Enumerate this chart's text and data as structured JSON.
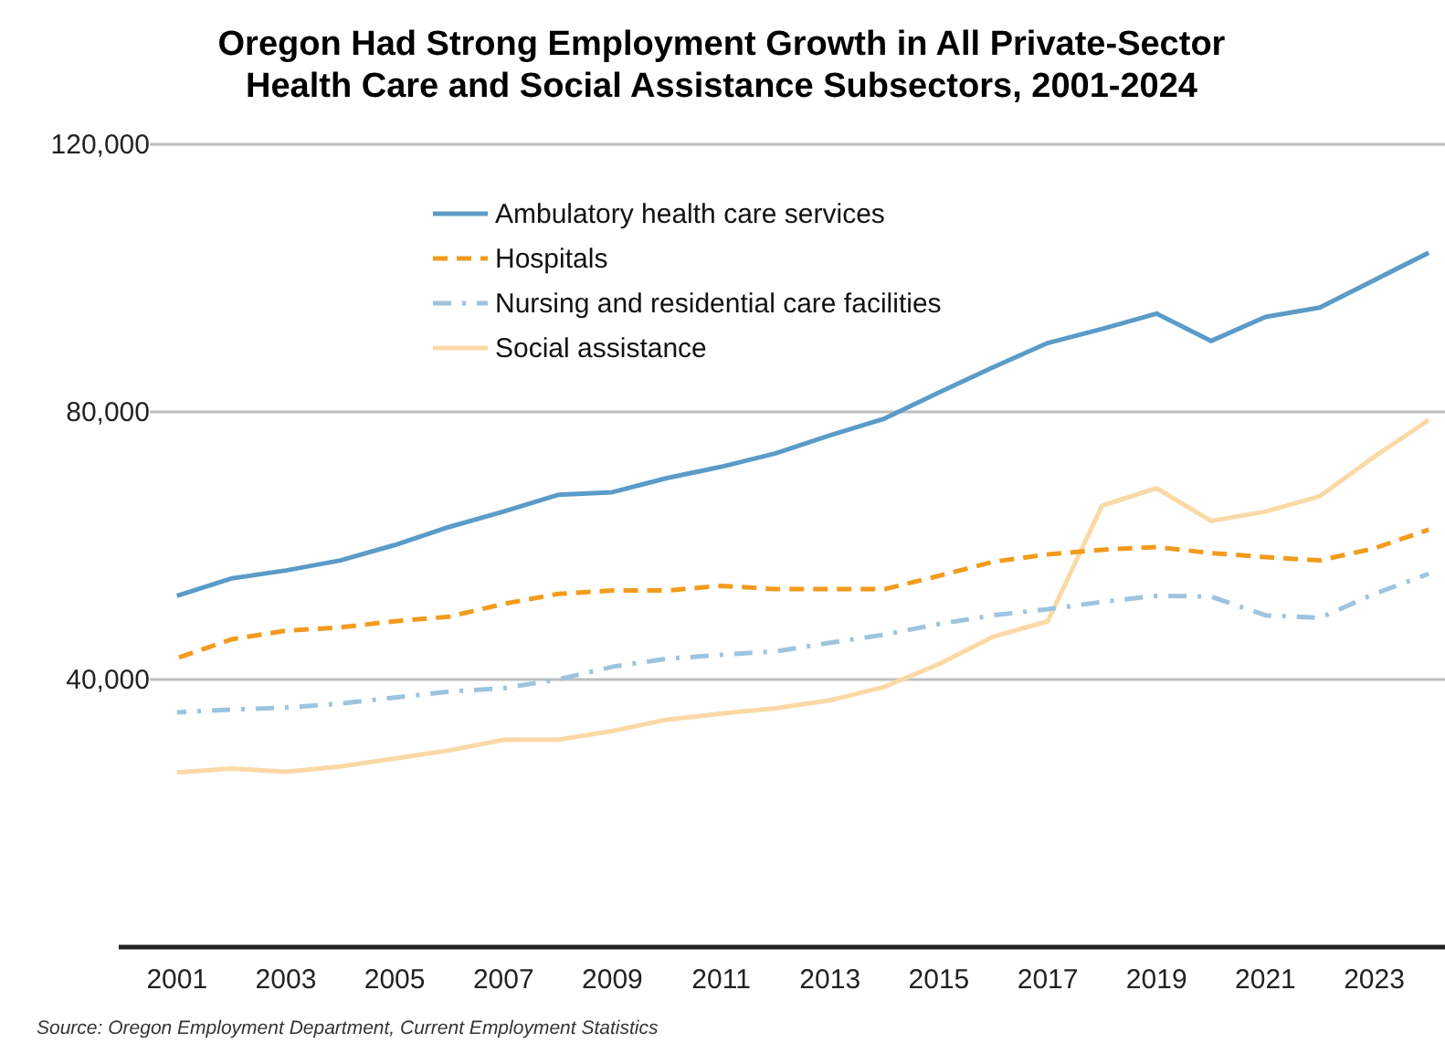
{
  "chart_data": {
    "type": "line",
    "title": "Oregon Had Strong Employment Growth in All Private-Sector Health Care and Social Assistance Subsectors, 2001-2024",
    "x": [
      2001,
      2002,
      2003,
      2004,
      2005,
      2006,
      2007,
      2008,
      2009,
      2010,
      2011,
      2012,
      2013,
      2014,
      2015,
      2016,
      2017,
      2018,
      2019,
      2020,
      2021,
      2022,
      2023,
      2024
    ],
    "series": [
      {
        "name": "Ambulatory health care services",
        "color": "#5b9bc8",
        "line_style": "solid",
        "values": [
          52500,
          55100,
          56300,
          57800,
          60100,
          62800,
          65100,
          67600,
          68000,
          70100,
          71800,
          73800,
          76500,
          79000,
          82900,
          86700,
          90300,
          92400,
          94700,
          90600,
          94200,
          95600,
          99700,
          103800
        ]
      },
      {
        "name": "Hospitals",
        "color": "#f29b1d",
        "line_style": "dashed",
        "values": [
          43200,
          46000,
          47300,
          47800,
          48700,
          49400,
          51300,
          52800,
          53300,
          53300,
          54000,
          53500,
          53500,
          53500,
          55500,
          57600,
          58700,
          59400,
          59800,
          58900,
          58300,
          57800,
          59600,
          62400
        ]
      },
      {
        "name": "Nursing and residential care facilities",
        "color": "#9cc4df",
        "line_style": "dashdot",
        "values": [
          35100,
          35500,
          35800,
          36400,
          37300,
          38200,
          38700,
          40000,
          41900,
          43100,
          43700,
          44200,
          45500,
          46700,
          48300,
          49600,
          50500,
          51600,
          52500,
          52400,
          49600,
          49200,
          52800,
          55800
        ]
      },
      {
        "name": "Social assistance",
        "color": "#fbd9a6",
        "line_style": "solid",
        "values": [
          26100,
          26700,
          26200,
          27000,
          28200,
          29400,
          31000,
          31000,
          32300,
          34000,
          34900,
          35700,
          36900,
          38900,
          42300,
          46400,
          48700,
          66000,
          68600,
          63700,
          65100,
          67400,
          73300,
          78800
        ]
      }
    ],
    "xlim": [
      2000.5,
      2024.3
    ],
    "xticks": [
      2001,
      2003,
      2005,
      2007,
      2009,
      2011,
      2013,
      2015,
      2017,
      2019,
      2021,
      2023
    ],
    "ylim": [
      0,
      120000
    ],
    "yticks": [
      {
        "value": 0,
        "label": null
      },
      {
        "value": 40000,
        "label": "40,000"
      },
      {
        "value": 80000,
        "label": "80,000"
      },
      {
        "value": 120000,
        "label": "120,000"
      }
    ],
    "grid": "y",
    "legend": "top",
    "marker": "none",
    "annotations": [
      "Source: Oregon Employment Department, Current Employment Statistics"
    ]
  }
}
